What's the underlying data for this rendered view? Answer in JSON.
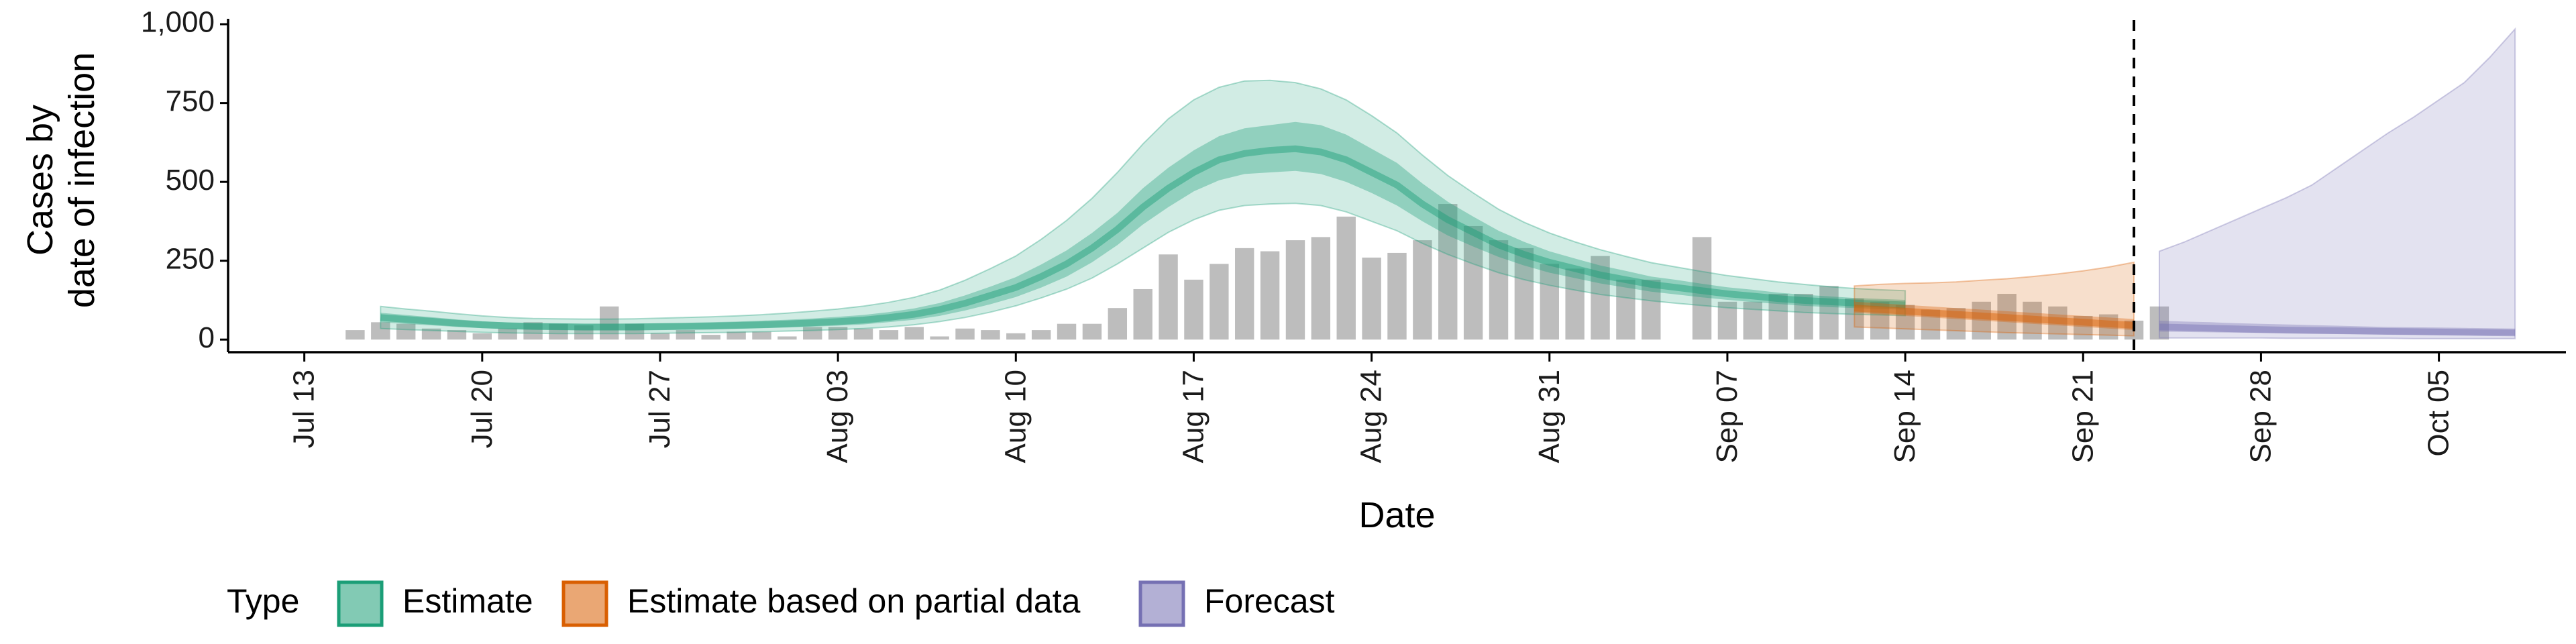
{
  "chart_data": {
    "type": "area",
    "xlabel": "Date",
    "ylabel_lines": [
      "Cases by",
      "date of infection"
    ],
    "yticks": [
      0,
      250,
      500,
      750,
      1000
    ],
    "ytick_labels": [
      "0",
      "250",
      "500",
      "750",
      "1,000"
    ],
    "ylim": [
      -40,
      1030
    ],
    "xlim": [
      "2020-07-10",
      "2020-10-10"
    ],
    "xticks": [
      "2020-07-13",
      "2020-07-20",
      "2020-07-27",
      "2020-08-03",
      "2020-08-10",
      "2020-08-17",
      "2020-08-24",
      "2020-08-31",
      "2020-09-07",
      "2020-09-14",
      "2020-09-21",
      "2020-09-28",
      "2020-10-05"
    ],
    "xtick_labels": [
      "Jul 13",
      "Jul 20",
      "Jul 27",
      "Aug 03",
      "Aug 10",
      "Aug 17",
      "Aug 24",
      "Aug 31",
      "Sep 07",
      "Sep 14",
      "Sep 21",
      "Sep 28",
      "Oct 05"
    ],
    "forecast_date": "2020-09-23",
    "reported_cases": {
      "start_date": "2020-07-15",
      "values": [
        30,
        55,
        50,
        35,
        30,
        20,
        35,
        55,
        50,
        45,
        105,
        50,
        20,
        30,
        15,
        25,
        25,
        10,
        40,
        40,
        35,
        30,
        40,
        10,
        35,
        30,
        20,
        30,
        50,
        50,
        100,
        160,
        270,
        190,
        240,
        290,
        280,
        315,
        325,
        390,
        260,
        275,
        315,
        430,
        360,
        315,
        290,
        240,
        225,
        265,
        190,
        190,
        0,
        325,
        120,
        120,
        145,
        145,
        170,
        130,
        120,
        110,
        95,
        100,
        120,
        145,
        120,
        105,
        75,
        80,
        60,
        105
      ]
    },
    "series": [
      {
        "name": "Estimate",
        "color": "#1b9e77",
        "start_date": "2020-07-16",
        "median": [
          70,
          64,
          58,
          52,
          47,
          44,
          42,
          41,
          40,
          40,
          40,
          41,
          42,
          43,
          45,
          47,
          50,
          53,
          57,
          62,
          70,
          80,
          95,
          115,
          140,
          165,
          200,
          240,
          290,
          350,
          420,
          480,
          530,
          570,
          590,
          600,
          605,
          595,
          570,
          530,
          490,
          430,
          380,
          340,
          300,
          270,
          245,
          225,
          205,
          190,
          175,
          165,
          155,
          145,
          138,
          130,
          124,
          120,
          116,
          113,
          110
        ],
        "inner_lower": [
          55,
          50,
          45,
          40,
          36,
          33,
          31,
          30,
          29,
          29,
          29,
          30,
          31,
          32,
          34,
          36,
          38,
          41,
          44,
          48,
          55,
          63,
          75,
          92,
          112,
          135,
          165,
          200,
          245,
          300,
          365,
          420,
          470,
          505,
          525,
          530,
          535,
          525,
          500,
          465,
          425,
          375,
          330,
          295,
          262,
          235,
          212,
          195,
          178,
          165,
          152,
          143,
          134,
          126,
          119,
          113,
          107,
          103,
          100,
          97,
          95
        ],
        "inner_upper": [
          85,
          78,
          71,
          64,
          58,
          54,
          52,
          51,
          50,
          50,
          51,
          52,
          53,
          55,
          57,
          60,
          63,
          67,
          72,
          78,
          87,
          99,
          116,
          140,
          168,
          198,
          238,
          283,
          338,
          402,
          480,
          545,
          600,
          645,
          670,
          680,
          690,
          680,
          650,
          605,
          560,
          495,
          437,
          390,
          345,
          310,
          280,
          257,
          235,
          218,
          200,
          189,
          177,
          166,
          158,
          149,
          142,
          137,
          132,
          129,
          126
        ],
        "outer_lower": [
          35,
          32,
          29,
          26,
          23,
          21,
          20,
          19,
          19,
          19,
          19,
          20,
          21,
          22,
          23,
          25,
          27,
          29,
          32,
          35,
          40,
          47,
          57,
          70,
          87,
          107,
          132,
          160,
          195,
          240,
          290,
          340,
          380,
          410,
          425,
          430,
          432,
          425,
          405,
          375,
          345,
          305,
          270,
          240,
          212,
          190,
          172,
          157,
          143,
          133,
          123,
          115,
          108,
          101,
          96,
          91,
          86,
          83,
          80,
          78,
          76
        ],
        "outer_upper": [
          105,
          97,
          90,
          82,
          75,
          70,
          67,
          66,
          65,
          65,
          66,
          68,
          70,
          72,
          75,
          79,
          84,
          90,
          97,
          106,
          118,
          134,
          157,
          188,
          225,
          265,
          318,
          378,
          448,
          530,
          620,
          700,
          760,
          800,
          820,
          822,
          815,
          795,
          760,
          710,
          655,
          585,
          520,
          465,
          413,
          372,
          338,
          310,
          285,
          264,
          244,
          230,
          216,
          203,
          193,
          183,
          175,
          168,
          162,
          158,
          155
        ]
      },
      {
        "name": "Estimate based on partial data",
        "color": "#d95f02",
        "start_date": "2020-09-12",
        "median": [
          100,
          95,
          90,
          85,
          80,
          75,
          70,
          65,
          60,
          55,
          50,
          45
        ],
        "inner_lower": [
          85,
          80,
          75,
          70,
          65,
          60,
          55,
          50,
          45,
          40,
          35,
          30
        ],
        "inner_upper": [
          120,
          115,
          110,
          105,
          100,
          95,
          90,
          85,
          80,
          75,
          70,
          65
        ],
        "outer_lower": [
          40,
          37,
          34,
          31,
          28,
          25,
          22,
          20,
          18,
          16,
          14,
          12
        ],
        "outer_upper": [
          170,
          175,
          178,
          180,
          183,
          188,
          193,
          200,
          208,
          218,
          230,
          245
        ]
      },
      {
        "name": "Forecast",
        "color": "#7570b3",
        "start_date": "2020-09-24",
        "median": [
          40,
          38,
          36,
          34,
          32,
          30,
          29,
          28,
          27,
          26,
          25,
          24,
          23,
          22,
          21
        ],
        "inner_lower": [
          25,
          24,
          23,
          22,
          21,
          20,
          19,
          18,
          17,
          16,
          15,
          14,
          14,
          13,
          13
        ],
        "inner_upper": [
          60,
          57,
          55,
          52,
          50,
          48,
          46,
          44,
          42,
          40,
          39,
          38,
          37,
          36,
          35
        ],
        "outer_lower": [
          5,
          5,
          5,
          5,
          5,
          4,
          4,
          4,
          4,
          4,
          3,
          3,
          3,
          3,
          3
        ],
        "outer_upper": [
          280,
          310,
          345,
          380,
          415,
          450,
          490,
          545,
          600,
          655,
          705,
          760,
          815,
          895,
          985
        ]
      }
    ],
    "legend": {
      "title": "Type",
      "position": "bottom",
      "items": [
        "Estimate",
        "Estimate based on partial data",
        "Forecast"
      ]
    },
    "grid": false
  }
}
